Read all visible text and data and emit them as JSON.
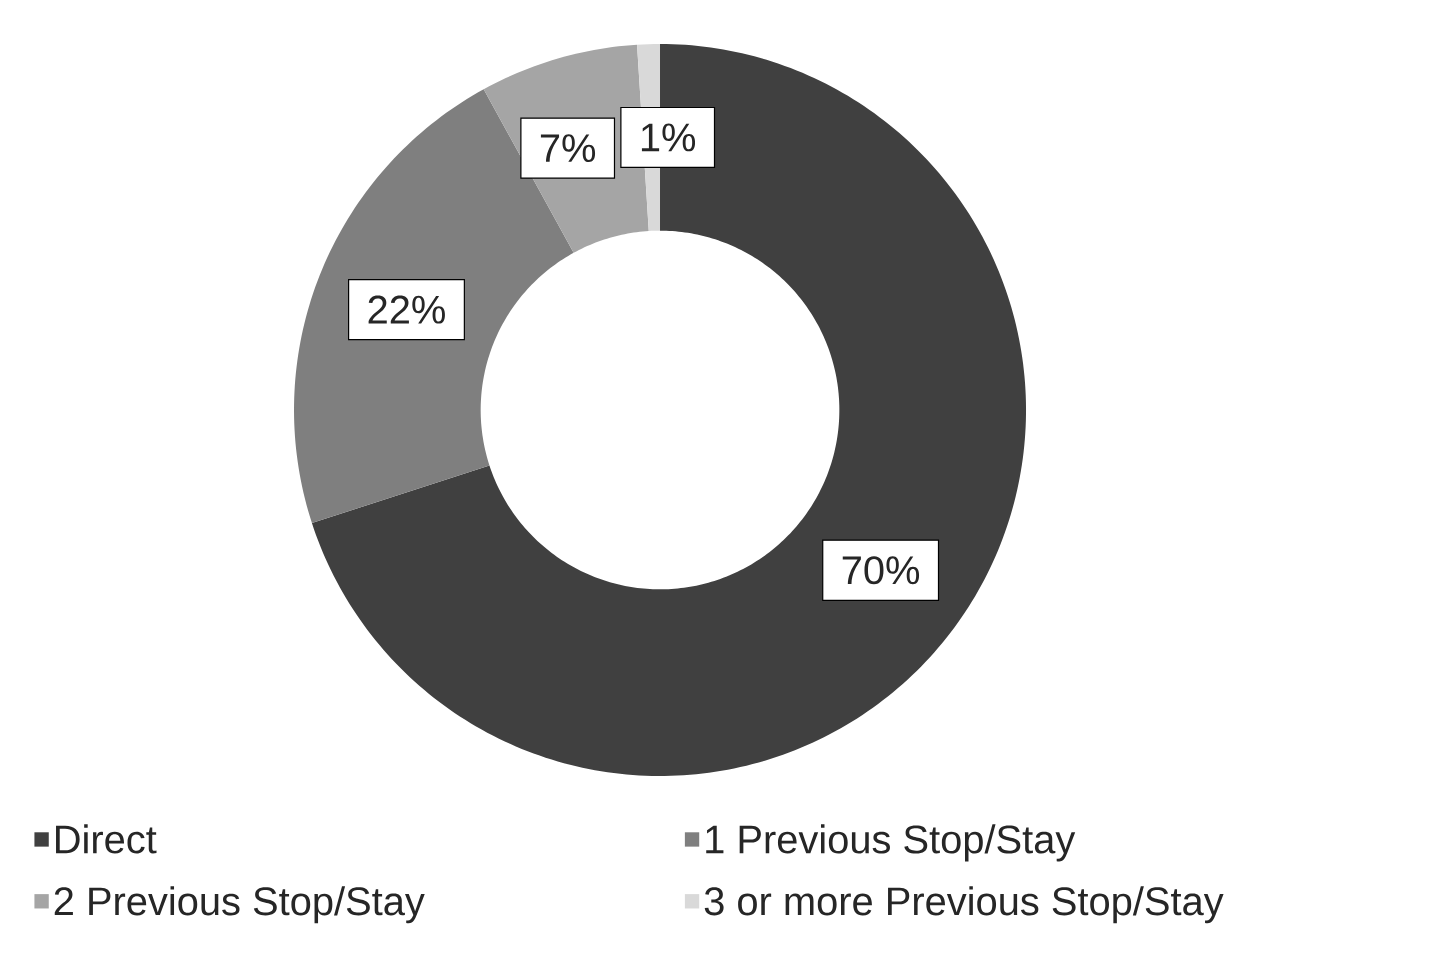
{
  "chart_data": {
    "type": "donut",
    "categories": [
      "Direct",
      "1 Previous Stop/Stay",
      "2 Previous Stop/Stay",
      "3 or more Previous Stop/Stay"
    ],
    "values": [
      70,
      22,
      7,
      1
    ],
    "colors": [
      "#404040",
      "#7f7f7f",
      "#a5a5a5",
      "#d9d9d9"
    ],
    "value_labels": [
      "70%",
      "22%",
      "7%",
      "1%"
    ],
    "legend": "bottom"
  }
}
